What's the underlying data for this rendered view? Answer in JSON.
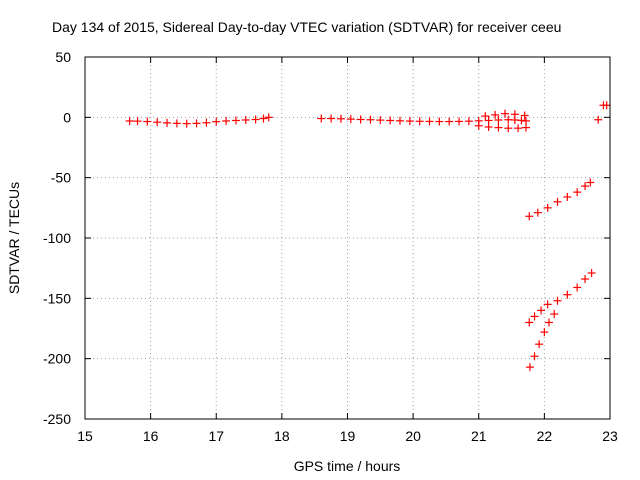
{
  "chart_data": {
    "type": "scatter",
    "title": "Day 134 of 2015, Sidereal Day-to-day VTEC variation (SDTVAR) for receiver ceeu",
    "xlabel": "GPS time / hours",
    "ylabel": "SDTVAR / TECUs",
    "xlim": [
      15,
      23
    ],
    "ylim": [
      -250,
      50
    ],
    "xticks": [
      "15",
      "16",
      "17",
      "18",
      "19",
      "20",
      "21",
      "22",
      "23"
    ],
    "yticks": [
      "50",
      "0",
      "-50",
      "-100",
      "-150",
      "-200",
      "-250"
    ],
    "grid": true,
    "marker": "plus",
    "color": "#ff0000",
    "series": [
      {
        "points": [
          [
            15.68,
            -3
          ],
          [
            15.8,
            -3.2
          ],
          [
            15.95,
            -3.5
          ],
          [
            16.1,
            -4
          ],
          [
            16.25,
            -4.6
          ],
          [
            16.4,
            -5
          ],
          [
            16.55,
            -5.2
          ],
          [
            16.7,
            -5
          ],
          [
            16.85,
            -4.5
          ],
          [
            17.0,
            -3.6
          ],
          [
            17.15,
            -3
          ],
          [
            17.3,
            -2.6
          ],
          [
            17.45,
            -2.2
          ],
          [
            17.6,
            -1.8
          ],
          [
            17.72,
            -1
          ],
          [
            17.8,
            0
          ],
          [
            18.6,
            -1
          ],
          [
            18.75,
            -1
          ],
          [
            18.9,
            -1.2
          ],
          [
            19.05,
            -1.5
          ],
          [
            19.2,
            -1.8
          ],
          [
            19.35,
            -2
          ],
          [
            19.5,
            -2.3
          ],
          [
            19.65,
            -2.6
          ],
          [
            19.8,
            -2.9
          ],
          [
            19.95,
            -3.1
          ],
          [
            20.1,
            -3.3
          ],
          [
            20.25,
            -3.4
          ],
          [
            20.4,
            -3.5
          ],
          [
            20.55,
            -3.5
          ],
          [
            20.7,
            -3.4
          ],
          [
            20.85,
            -3.2
          ],
          [
            21.0,
            -2.9
          ],
          [
            21.15,
            -2.6
          ],
          [
            21.3,
            -2.2
          ],
          [
            21.45,
            -2
          ],
          [
            21.55,
            -2.2
          ],
          [
            21.65,
            -2.5
          ],
          [
            21.72,
            -3
          ],
          [
            21.1,
            1
          ],
          [
            21.25,
            2
          ],
          [
            21.4,
            3
          ],
          [
            21.55,
            2.5
          ],
          [
            21.7,
            1.5
          ],
          [
            21.0,
            -7
          ],
          [
            21.15,
            -8
          ],
          [
            21.3,
            -8.5
          ],
          [
            21.45,
            -9
          ],
          [
            21.6,
            -9
          ],
          [
            21.72,
            -8.5
          ],
          [
            22.82,
            -2
          ],
          [
            22.9,
            10
          ],
          [
            22.95,
            10
          ]
        ]
      },
      {
        "points": [
          [
            21.77,
            -82
          ],
          [
            21.9,
            -79
          ],
          [
            22.05,
            -75
          ],
          [
            22.2,
            -70
          ],
          [
            22.35,
            -66
          ],
          [
            22.5,
            -62
          ],
          [
            22.62,
            -57
          ],
          [
            22.7,
            -54
          ]
        ]
      },
      {
        "points": [
          [
            21.77,
            -170
          ],
          [
            21.85,
            -165
          ],
          [
            21.95,
            -160
          ],
          [
            22.05,
            -155
          ],
          [
            22.2,
            -152
          ],
          [
            22.35,
            -147
          ],
          [
            22.5,
            -141
          ],
          [
            22.62,
            -134
          ],
          [
            22.72,
            -129
          ]
        ]
      },
      {
        "points": [
          [
            21.78,
            -207
          ],
          [
            21.85,
            -198
          ],
          [
            21.92,
            -188
          ],
          [
            22.0,
            -178
          ],
          [
            22.07,
            -170
          ],
          [
            22.15,
            -163
          ]
        ]
      }
    ]
  }
}
